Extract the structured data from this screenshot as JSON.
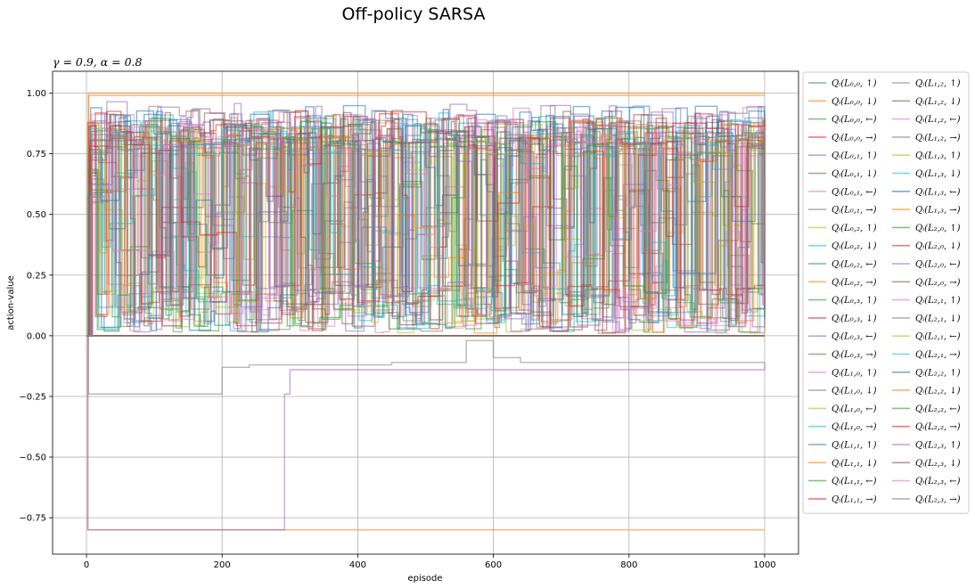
{
  "chart_data": {
    "type": "line",
    "title": "Off-policy SARSA",
    "subtitle": "γ = 0.9, α = 0.8",
    "xlabel": "episode",
    "ylabel": "action-value",
    "xlim": [
      -50,
      1050
    ],
    "ylim": [
      -0.9,
      1.09
    ],
    "xticks": [
      0,
      200,
      400,
      600,
      800,
      1000
    ],
    "xtick_labels": [
      "0",
      "200",
      "400",
      "600",
      "800",
      "1000"
    ],
    "yticks": [
      -0.75,
      -0.5,
      -0.25,
      0.0,
      0.25,
      0.5,
      0.75,
      1.0
    ],
    "ytick_labels": [
      "−0.75",
      "−0.50",
      "−0.25",
      "0.00",
      "0.25",
      "0.50",
      "0.75",
      "1.00"
    ],
    "grid": true,
    "legend_placement": "outside right, 2 columns",
    "colors": [
      "#1f77b4",
      "#ff7f0e",
      "#2ca02c",
      "#d62728",
      "#9467bd",
      "#8c564b",
      "#e377c2",
      "#7f7f7f",
      "#bcbd22",
      "#17becf"
    ],
    "series": [
      {
        "name": "Qᵢ(L₀,₀, ↑)",
        "pattern": "flat",
        "x": [
          0,
          1000
        ],
        "values": [
          0,
          0
        ]
      },
      {
        "name": "Qᵢ(L₀,₀, ↓)",
        "pattern": "steps",
        "x": [
          0,
          2,
          5,
          1000
        ],
        "values": [
          0,
          -0.8,
          -0.8,
          -0.8
        ]
      },
      {
        "name": "Qᵢ(L₀,₀, ←)",
        "pattern": "flat",
        "x": [
          0,
          1000
        ],
        "values": [
          0,
          0
        ]
      },
      {
        "name": "Qᵢ(L₀,₀, →)",
        "pattern": "flat",
        "x": [
          0,
          1000
        ],
        "values": [
          0,
          0
        ]
      },
      {
        "name": "Qᵢ(L₀,₁, ↑)",
        "pattern": "steps",
        "x": [
          0,
          2,
          290,
          292,
          300,
          1000
        ],
        "values": [
          0,
          -0.8,
          -0.8,
          -0.24,
          -0.14,
          -0.11
        ]
      },
      {
        "name": "Qᵢ(L₀,₁, ↓)",
        "pattern": "flat",
        "x": [
          0,
          1000
        ],
        "values": [
          0,
          0
        ]
      },
      {
        "name": "Qᵢ(L₀,₁, ←)",
        "pattern": "oscillating",
        "x": [
          0,
          1000
        ],
        "values": [
          0,
          0.93
        ]
      },
      {
        "name": "Qᵢ(L₀,₁, →)",
        "pattern": "steps",
        "x": [
          0,
          3,
          195,
          200,
          240,
          450,
          560,
          600,
          640,
          1000
        ],
        "values": [
          0,
          -0.24,
          -0.24,
          -0.13,
          -0.12,
          -0.11,
          -0.02,
          -0.09,
          -0.11,
          -0.11
        ]
      },
      {
        "name": "Qᵢ(L₀,₂, ↑)",
        "pattern": "oscillating",
        "x": [
          0,
          1000
        ],
        "values": [
          0,
          0.9
        ]
      },
      {
        "name": "Qᵢ(L₀,₂, ↓)",
        "pattern": "oscillating",
        "x": [
          0,
          1000
        ],
        "values": [
          0,
          0.92
        ]
      },
      {
        "name": "Qᵢ(L₀,₂, ←)",
        "pattern": "oscillating",
        "x": [
          0,
          1000
        ],
        "values": [
          0,
          0.95
        ]
      },
      {
        "name": "Qᵢ(L₀,₂, →)",
        "pattern": "steps",
        "x": [
          0,
          3,
          1000
        ],
        "values": [
          0,
          1.0,
          1.0
        ]
      },
      {
        "name": "Qᵢ(L₀,₃, ↑)",
        "pattern": "oscillating",
        "x": [
          0,
          1000
        ],
        "values": [
          0,
          0.88
        ]
      },
      {
        "name": "Qᵢ(L₀,₃, ↓)",
        "pattern": "oscillating",
        "x": [
          0,
          1000
        ],
        "values": [
          0,
          0.9
        ]
      },
      {
        "name": "Qᵢ(L₀,₃, ←)",
        "pattern": "oscillating",
        "x": [
          0,
          1000
        ],
        "values": [
          0,
          0.97
        ]
      },
      {
        "name": "Qᵢ(L₀,₃, →)",
        "pattern": "oscillating",
        "x": [
          0,
          1000
        ],
        "values": [
          0,
          0.95
        ]
      },
      {
        "name": "Qᵢ(L₁,₀, ↑)",
        "pattern": "oscillating",
        "x": [
          0,
          1000
        ],
        "values": [
          0,
          0.9
        ]
      },
      {
        "name": "Qᵢ(L₁,₀, ↓)",
        "pattern": "oscillating",
        "x": [
          0,
          1000
        ],
        "values": [
          0,
          0.93
        ]
      },
      {
        "name": "Qᵢ(L₁,₀, ←)",
        "pattern": "oscillating",
        "x": [
          0,
          1000
        ],
        "values": [
          0,
          0.85
        ]
      },
      {
        "name": "Qᵢ(L₁,₀, →)",
        "pattern": "oscillating",
        "x": [
          0,
          1000
        ],
        "values": [
          0,
          0.9
        ]
      },
      {
        "name": "Qᵢ(L₁,₁, ↑)",
        "pattern": "oscillating",
        "x": [
          0,
          1000
        ],
        "values": [
          0,
          0.95
        ]
      },
      {
        "name": "Qᵢ(L₁,₁, ↓)",
        "pattern": "oscillating",
        "x": [
          0,
          1000
        ],
        "values": [
          0,
          0.88
        ]
      },
      {
        "name": "Qᵢ(L₁,₁, ←)",
        "pattern": "oscillating",
        "x": [
          0,
          1000
        ],
        "values": [
          0,
          0.9
        ]
      },
      {
        "name": "Qᵢ(L₁,₁, →)",
        "pattern": "oscillating",
        "x": [
          0,
          1000
        ],
        "values": [
          0,
          0.93
        ]
      },
      {
        "name": "Qᵢ(L₁,₂, ↑)",
        "pattern": "oscillating",
        "x": [
          0,
          1000
        ],
        "values": [
          0,
          0.94
        ]
      },
      {
        "name": "Qᵢ(L₁,₂, ↓)",
        "pattern": "oscillating",
        "x": [
          0,
          1000
        ],
        "values": [
          0,
          0.9
        ]
      },
      {
        "name": "Qᵢ(L₁,₂, ←)",
        "pattern": "oscillating",
        "x": [
          0,
          1000
        ],
        "values": [
          0,
          0.92
        ]
      },
      {
        "name": "Qᵢ(L₁,₂, →)",
        "pattern": "oscillating",
        "x": [
          0,
          1000
        ],
        "values": [
          0,
          0.95
        ]
      },
      {
        "name": "Qᵢ(L₁,₃, ↑)",
        "pattern": "oscillating",
        "x": [
          0,
          1000
        ],
        "values": [
          0,
          0.88
        ]
      },
      {
        "name": "Qᵢ(L₁,₃, ↓)",
        "pattern": "oscillating",
        "x": [
          0,
          1000
        ],
        "values": [
          0,
          0.9
        ]
      },
      {
        "name": "Qᵢ(L₁,₃, ←)",
        "pattern": "oscillating",
        "x": [
          0,
          1000
        ],
        "values": [
          0,
          0.93
        ]
      },
      {
        "name": "Qᵢ(L₁,₃, →)",
        "pattern": "steps",
        "x": [
          0,
          3,
          1000
        ],
        "values": [
          0,
          0.99,
          0.99
        ]
      },
      {
        "name": "Qᵢ(L₂,₀, ↑)",
        "pattern": "oscillating",
        "x": [
          0,
          1000
        ],
        "values": [
          0,
          0.9
        ]
      },
      {
        "name": "Qᵢ(L₂,₀, ↓)",
        "pattern": "oscillating",
        "x": [
          0,
          1000
        ],
        "values": [
          0,
          0.93
        ]
      },
      {
        "name": "Qᵢ(L₂,₀, ←)",
        "pattern": "oscillating",
        "x": [
          0,
          1000
        ],
        "values": [
          0,
          0.9
        ]
      },
      {
        "name": "Qᵢ(L₂,₀, →)",
        "pattern": "oscillating",
        "x": [
          0,
          1000
        ],
        "values": [
          0,
          0.92
        ]
      },
      {
        "name": "Qᵢ(L₂,₁, ↑)",
        "pattern": "oscillating",
        "x": [
          0,
          1000
        ],
        "values": [
          0,
          0.95
        ]
      },
      {
        "name": "Qᵢ(L₂,₁, ↓)",
        "pattern": "oscillating",
        "x": [
          0,
          1000
        ],
        "values": [
          0,
          0.88
        ]
      },
      {
        "name": "Qᵢ(L₂,₁, ←)",
        "pattern": "oscillating",
        "x": [
          0,
          1000
        ],
        "values": [
          0,
          0.9
        ]
      },
      {
        "name": "Qᵢ(L₂,₁, →)",
        "pattern": "oscillating",
        "x": [
          0,
          1000
        ],
        "values": [
          0,
          0.93
        ]
      },
      {
        "name": "Qᵢ(L₂,₂, ↑)",
        "pattern": "oscillating",
        "x": [
          0,
          1000
        ],
        "values": [
          0,
          0.96
        ]
      },
      {
        "name": "Qᵢ(L₂,₂, ↓)",
        "pattern": "oscillating",
        "x": [
          0,
          1000
        ],
        "values": [
          0,
          0.9
        ]
      },
      {
        "name": "Qᵢ(L₂,₂, ←)",
        "pattern": "oscillating",
        "x": [
          0,
          1000
        ],
        "values": [
          0,
          0.92
        ]
      },
      {
        "name": "Qᵢ(L₂,₂, →)",
        "pattern": "oscillating",
        "x": [
          0,
          1000
        ],
        "values": [
          0,
          0.94
        ]
      },
      {
        "name": "Qᵢ(L₂,₃, ↑)",
        "pattern": "oscillating",
        "x": [
          0,
          1000
        ],
        "values": [
          0,
          0.9
        ]
      },
      {
        "name": "Qᵢ(L₂,₃, ↓)",
        "pattern": "oscillating",
        "x": [
          0,
          1000
        ],
        "values": [
          0,
          0.93
        ]
      },
      {
        "name": "Qᵢ(L₂,₃, ←)",
        "pattern": "oscillating",
        "x": [
          0,
          1000
        ],
        "values": [
          0,
          0.9
        ]
      },
      {
        "name": "Qᵢ(L₂,₃, →)",
        "pattern": "oscillating",
        "x": [
          0,
          1000
        ],
        "values": [
          0,
          0.92
        ]
      }
    ]
  }
}
